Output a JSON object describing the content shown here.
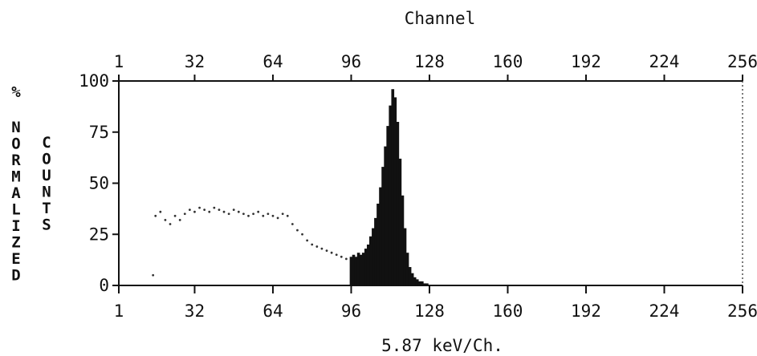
{
  "chart_data": {
    "type": "bar",
    "title": "Channel",
    "xlabel": "5.87 keV/Ch.",
    "ylabel_left": "%",
    "ylabel_normalized": "NORMALIZED",
    "ylabel_counts": "COUNTS",
    "x_ticks": [
      "1",
      "32",
      "64",
      "96",
      "128",
      "160",
      "192",
      "224",
      "256"
    ],
    "x_tick_values": [
      1,
      32,
      64,
      96,
      128,
      160,
      192,
      224,
      256
    ],
    "y_ticks": [
      "100",
      "75",
      "50",
      "25",
      "0"
    ],
    "y_tick_values": [
      100,
      75,
      50,
      25,
      0
    ],
    "xlim": [
      1,
      256
    ],
    "ylim": [
      0,
      100
    ],
    "grid": false,
    "series": [
      {
        "style": "dots",
        "x": [
          15,
          16,
          18,
          20,
          22,
          24,
          26,
          28,
          30,
          32,
          34,
          36,
          38,
          40,
          42,
          44,
          46,
          48,
          50,
          52,
          54,
          56,
          58,
          60,
          62,
          64,
          66,
          68,
          70,
          72,
          74,
          76,
          78,
          80,
          82,
          84,
          86,
          88,
          90,
          92,
          94
        ],
        "values": [
          5,
          34,
          36,
          32,
          30,
          34,
          32,
          35,
          37,
          36,
          38,
          37,
          36,
          38,
          37,
          36,
          35,
          37,
          36,
          35,
          34,
          35,
          36,
          34,
          35,
          34,
          33,
          35,
          34,
          30,
          27,
          25,
          22,
          20,
          19,
          18,
          17,
          16,
          15,
          14,
          13
        ]
      },
      {
        "style": "filled-bars",
        "x": [
          96,
          97,
          98,
          99,
          100,
          101,
          102,
          103,
          104,
          105,
          106,
          107,
          108,
          109,
          110,
          111,
          112,
          113,
          114,
          115,
          116,
          117,
          118,
          119,
          120,
          121,
          122,
          123,
          124,
          125,
          126,
          127
        ],
        "values": [
          14,
          15,
          14,
          16,
          15,
          16,
          18,
          20,
          24,
          28,
          33,
          40,
          48,
          58,
          68,
          78,
          88,
          96,
          92,
          80,
          62,
          44,
          28,
          16,
          9,
          6,
          4,
          3,
          2,
          2,
          1,
          1
        ]
      }
    ]
  }
}
